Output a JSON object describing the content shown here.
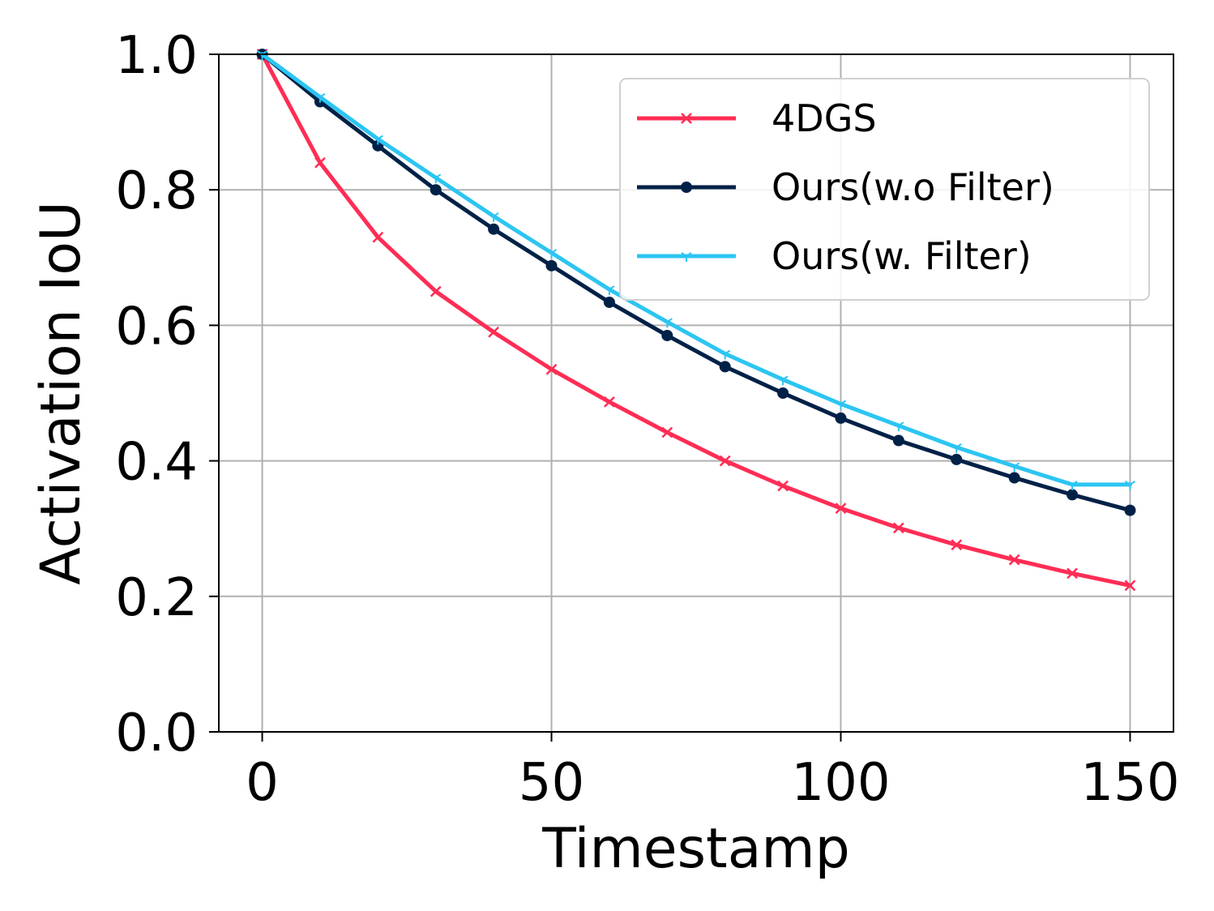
{
  "chart_data": {
    "type": "line",
    "title": "",
    "xlabel": "Timestamp",
    "ylabel": "Activation IoU",
    "xlim": [
      -7.5,
      157.5
    ],
    "ylim": [
      0.0,
      1.0
    ],
    "xticks": [
      0,
      50,
      100,
      150
    ],
    "xtick_labels": [
      "0",
      "50",
      "100",
      "150"
    ],
    "yticks": [
      0.0,
      0.2,
      0.4,
      0.6,
      0.8,
      1.0
    ],
    "ytick_labels": [
      "0.0",
      "0.2",
      "0.4",
      "0.6",
      "0.8",
      "1.0"
    ],
    "grid": true,
    "legend_position": "top-right",
    "x": [
      0,
      10,
      20,
      30,
      40,
      50,
      60,
      70,
      80,
      90,
      100,
      110,
      120,
      130,
      140,
      150
    ],
    "series": [
      {
        "name": "4DGS",
        "color": "#FF2D55",
        "marker": "x",
        "values": [
          1.0,
          0.84,
          0.73,
          0.65,
          0.59,
          0.535,
          0.487,
          0.442,
          0.4,
          0.363,
          0.33,
          0.301,
          0.276,
          0.254,
          0.234,
          0.216
        ]
      },
      {
        "name": "Ours(w.o Filter)",
        "color": "#002147",
        "marker": "o",
        "values": [
          1.0,
          0.93,
          0.865,
          0.8,
          0.742,
          0.688,
          0.634,
          0.585,
          0.539,
          0.5,
          0.463,
          0.43,
          0.402,
          0.375,
          0.35,
          0.327
        ]
      },
      {
        "name": "Ours(w. Filter)",
        "color": "#2CC5F2",
        "marker": "1",
        "values": [
          1.0,
          0.937,
          0.875,
          0.818,
          0.761,
          0.707,
          0.653,
          0.605,
          0.558,
          0.52,
          0.484,
          0.452,
          0.42,
          0.392,
          0.365,
          0.365
        ]
      }
    ]
  }
}
